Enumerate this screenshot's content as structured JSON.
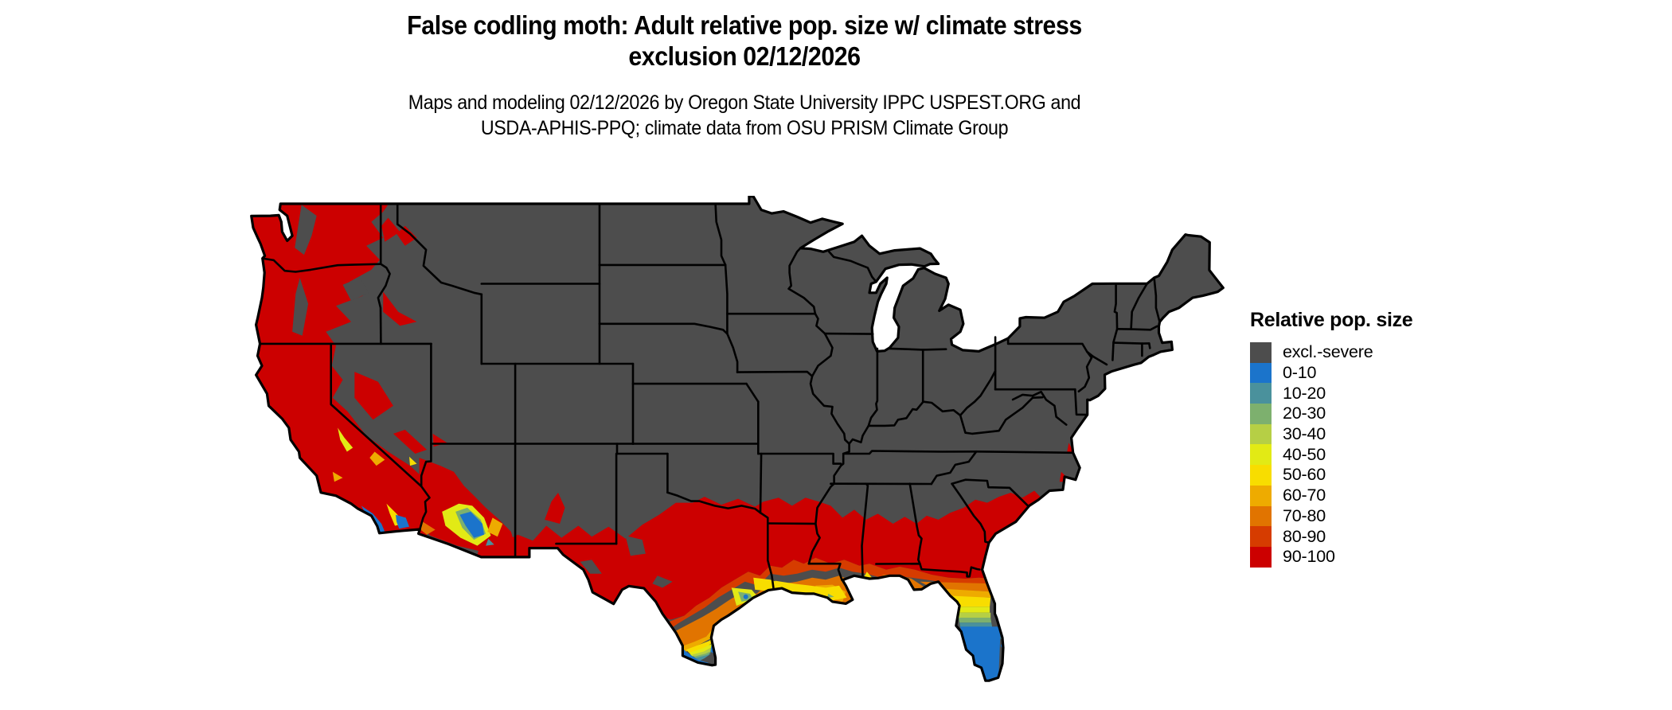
{
  "title": {
    "line1": "False codling moth: Adult relative pop. size w/ climate stress",
    "line2": "exclusion 02/12/2026"
  },
  "subtitle": {
    "line1": "Maps and modeling 02/12/2026 by Oregon State University IPPC USPEST.ORG and",
    "line2": "USDA-APHIS-PPQ; climate data from OSU PRISM Climate Group"
  },
  "legend": {
    "title": "Relative pop. size",
    "items": [
      {
        "label": "excl.-severe",
        "color": "#4D4D4D"
      },
      {
        "label": "0-10",
        "color": "#1B74CB"
      },
      {
        "label": "10-20",
        "color": "#4A919C"
      },
      {
        "label": "20-30",
        "color": "#7DB06E"
      },
      {
        "label": "30-40",
        "color": "#B6CF45"
      },
      {
        "label": "40-50",
        "color": "#E2EA15"
      },
      {
        "label": "50-60",
        "color": "#F8DD00"
      },
      {
        "label": "60-70",
        "color": "#EEAB00"
      },
      {
        "label": "70-80",
        "color": "#E17400"
      },
      {
        "label": "80-90",
        "color": "#D63C00"
      },
      {
        "label": "90-100",
        "color": "#CC0000"
      }
    ]
  },
  "map": {
    "land_color": "#4D4D4D",
    "border_color": "#000000",
    "background_color": "#FFFFFF",
    "region": "Contiguous United States"
  }
}
